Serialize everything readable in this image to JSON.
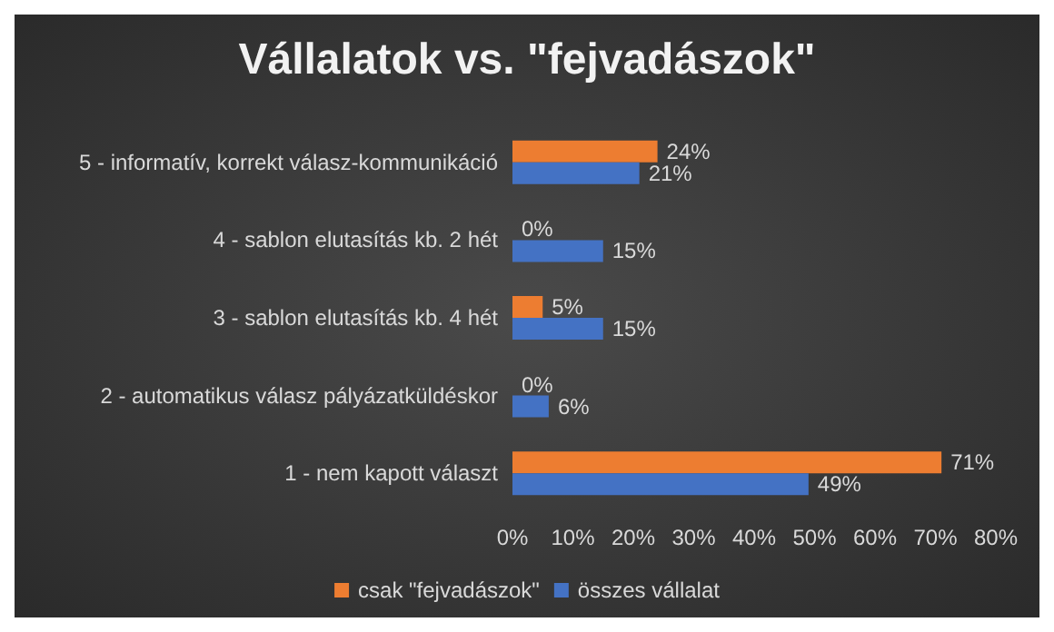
{
  "chart_data": {
    "type": "bar",
    "orientation": "horizontal",
    "title": "Vállalatok vs. \"fejvadászok\"",
    "categories": [
      "5 - informatív, korrekt válasz-kommunikáció",
      "4 - sablon elutasítás kb. 2 hét",
      "3 - sablon elutasítás kb. 4 hét",
      "2 - automatikus válasz pályázatküldéskor",
      "1 - nem kapott választ"
    ],
    "series": [
      {
        "name": "csak \"fejvadászok\"",
        "color": "#ed7d31",
        "values": [
          24,
          0,
          5,
          0,
          71
        ],
        "value_labels": [
          "24%",
          "0%",
          "5%",
          "0%",
          "71%"
        ]
      },
      {
        "name": "összes vállalat",
        "color": "#4472c4",
        "values": [
          21,
          15,
          15,
          6,
          49
        ],
        "value_labels": [
          "21%",
          "15%",
          "15%",
          "6%",
          "49%"
        ]
      }
    ],
    "xlim": [
      0,
      80
    ],
    "xticks": [
      {
        "value": 0,
        "label": "0%"
      },
      {
        "value": 10,
        "label": "10%"
      },
      {
        "value": 20,
        "label": "20%"
      },
      {
        "value": 30,
        "label": "30%"
      },
      {
        "value": 40,
        "label": "40%"
      },
      {
        "value": 50,
        "label": "50%"
      },
      {
        "value": 60,
        "label": "60%"
      },
      {
        "value": 70,
        "label": "70%"
      },
      {
        "value": 80,
        "label": "80%"
      }
    ],
    "grid": false,
    "legend": "bottom"
  }
}
